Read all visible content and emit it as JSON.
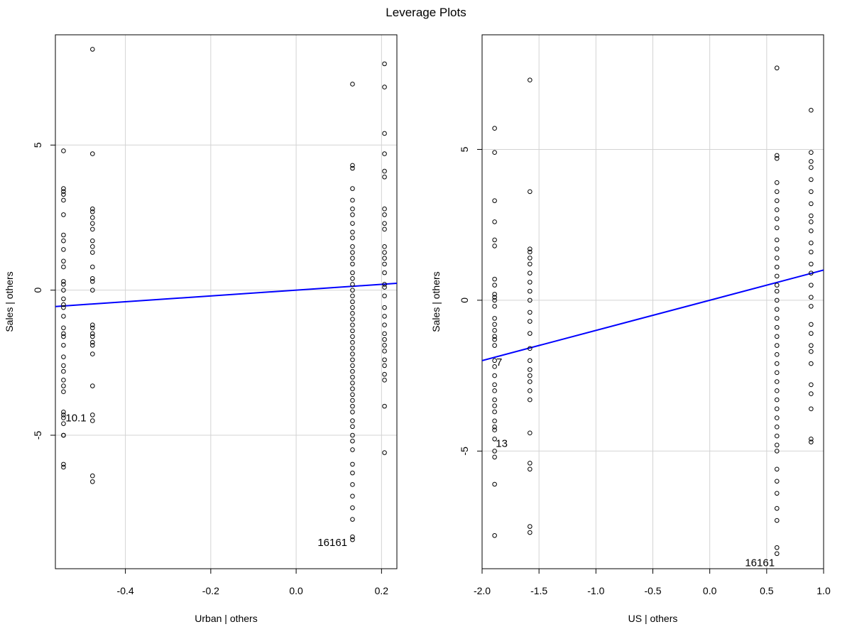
{
  "title": "Leverage Plots",
  "chart_data": [
    {
      "type": "scatter",
      "xlabel": "Urban | others",
      "ylabel": "Sales | others",
      "xlim": [
        -0.564,
        0.236
      ],
      "ylim": [
        -9.6,
        8.8
      ],
      "xticks": [
        "-0.4",
        "-0.2",
        "0.0",
        "0.2"
      ],
      "yticks": [
        "-5",
        "0",
        "5"
      ],
      "grid": true,
      "fit_line": {
        "slope": 1.0,
        "intercept": 0.0,
        "color": "#0000ff"
      },
      "points": [
        [
          -0.545,
          4.8
        ],
        [
          -0.545,
          3.5
        ],
        [
          -0.545,
          3.4
        ],
        [
          -0.545,
          3.3
        ],
        [
          -0.545,
          3.1
        ],
        [
          -0.545,
          2.6
        ],
        [
          -0.545,
          1.9
        ],
        [
          -0.545,
          1.7
        ],
        [
          -0.545,
          1.4
        ],
        [
          -0.545,
          1.0
        ],
        [
          -0.545,
          0.8
        ],
        [
          -0.545,
          0.3
        ],
        [
          -0.545,
          0.2
        ],
        [
          -0.545,
          0.0
        ],
        [
          -0.545,
          -0.3
        ],
        [
          -0.545,
          -0.5
        ],
        [
          -0.545,
          -0.6
        ],
        [
          -0.545,
          -0.9
        ],
        [
          -0.545,
          -1.3
        ],
        [
          -0.545,
          -1.5
        ],
        [
          -0.545,
          -1.6
        ],
        [
          -0.545,
          -1.9
        ],
        [
          -0.545,
          -2.3
        ],
        [
          -0.545,
          -2.6
        ],
        [
          -0.545,
          -2.8
        ],
        [
          -0.545,
          -3.1
        ],
        [
          -0.545,
          -3.3
        ],
        [
          -0.545,
          -3.5
        ],
        [
          -0.545,
          -4.2
        ],
        [
          -0.545,
          -4.3
        ],
        [
          -0.545,
          -4.4
        ],
        [
          -0.545,
          -4.6
        ],
        [
          -0.545,
          -5.0
        ],
        [
          -0.545,
          -5.0
        ],
        [
          -0.545,
          -6.0
        ],
        [
          -0.545,
          -6.1
        ],
        [
          -0.477,
          8.3
        ],
        [
          -0.477,
          4.7
        ],
        [
          -0.477,
          2.8
        ],
        [
          -0.477,
          2.7
        ],
        [
          -0.477,
          2.5
        ],
        [
          -0.477,
          2.3
        ],
        [
          -0.477,
          2.1
        ],
        [
          -0.477,
          1.7
        ],
        [
          -0.477,
          1.5
        ],
        [
          -0.477,
          1.3
        ],
        [
          -0.477,
          0.8
        ],
        [
          -0.477,
          0.4
        ],
        [
          -0.477,
          0.3
        ],
        [
          -0.477,
          0.0
        ],
        [
          -0.477,
          -1.2
        ],
        [
          -0.477,
          -1.3
        ],
        [
          -0.477,
          -1.5
        ],
        [
          -0.477,
          -1.6
        ],
        [
          -0.477,
          -1.8
        ],
        [
          -0.477,
          -1.9
        ],
        [
          -0.477,
          -2.2
        ],
        [
          -0.477,
          -3.3
        ],
        [
          -0.477,
          -4.3
        ],
        [
          -0.477,
          -4.5
        ],
        [
          -0.477,
          -6.4
        ],
        [
          -0.477,
          -6.6
        ],
        [
          0.132,
          7.1
        ],
        [
          0.132,
          4.3
        ],
        [
          0.132,
          4.2
        ],
        [
          0.132,
          3.5
        ],
        [
          0.132,
          3.1
        ],
        [
          0.132,
          2.8
        ],
        [
          0.132,
          2.6
        ],
        [
          0.132,
          2.3
        ],
        [
          0.132,
          2.0
        ],
        [
          0.132,
          1.8
        ],
        [
          0.132,
          1.5
        ],
        [
          0.132,
          1.3
        ],
        [
          0.132,
          1.1
        ],
        [
          0.132,
          0.9
        ],
        [
          0.132,
          0.6
        ],
        [
          0.132,
          0.4
        ],
        [
          0.132,
          0.2
        ],
        [
          0.132,
          0.0
        ],
        [
          0.132,
          -0.2
        ],
        [
          0.132,
          -0.4
        ],
        [
          0.132,
          -0.6
        ],
        [
          0.132,
          -0.8
        ],
        [
          0.132,
          -1.0
        ],
        [
          0.132,
          -1.2
        ],
        [
          0.132,
          -1.4
        ],
        [
          0.132,
          -1.6
        ],
        [
          0.132,
          -1.8
        ],
        [
          0.132,
          -2.0
        ],
        [
          0.132,
          -2.2
        ],
        [
          0.132,
          -2.4
        ],
        [
          0.132,
          -2.6
        ],
        [
          0.132,
          -2.8
        ],
        [
          0.132,
          -3.0
        ],
        [
          0.132,
          -3.2
        ],
        [
          0.132,
          -3.4
        ],
        [
          0.132,
          -3.6
        ],
        [
          0.132,
          -3.8
        ],
        [
          0.132,
          -4.0
        ],
        [
          0.132,
          -4.2
        ],
        [
          0.132,
          -4.5
        ],
        [
          0.132,
          -4.7
        ],
        [
          0.132,
          -5.0
        ],
        [
          0.132,
          -5.2
        ],
        [
          0.132,
          -5.5
        ],
        [
          0.132,
          -6.0
        ],
        [
          0.132,
          -6.3
        ],
        [
          0.132,
          -6.7
        ],
        [
          0.132,
          -7.1
        ],
        [
          0.132,
          -7.5
        ],
        [
          0.132,
          -7.9
        ],
        [
          0.132,
          -8.5
        ],
        [
          0.132,
          -8.6
        ],
        [
          0.207,
          7.8
        ],
        [
          0.207,
          7.0
        ],
        [
          0.207,
          5.4
        ],
        [
          0.207,
          4.7
        ],
        [
          0.207,
          4.1
        ],
        [
          0.207,
          3.9
        ],
        [
          0.207,
          2.8
        ],
        [
          0.207,
          2.6
        ],
        [
          0.207,
          2.3
        ],
        [
          0.207,
          2.1
        ],
        [
          0.207,
          1.5
        ],
        [
          0.207,
          1.3
        ],
        [
          0.207,
          1.1
        ],
        [
          0.207,
          0.9
        ],
        [
          0.207,
          0.6
        ],
        [
          0.207,
          0.2
        ],
        [
          0.207,
          0.1
        ],
        [
          0.207,
          -0.2
        ],
        [
          0.207,
          -0.6
        ],
        [
          0.207,
          -0.9
        ],
        [
          0.207,
          -1.2
        ],
        [
          0.207,
          -1.5
        ],
        [
          0.207,
          -1.7
        ],
        [
          0.207,
          -1.9
        ],
        [
          0.207,
          -2.1
        ],
        [
          0.207,
          -2.4
        ],
        [
          0.207,
          -2.6
        ],
        [
          0.207,
          -2.9
        ],
        [
          0.207,
          -3.1
        ],
        [
          0.207,
          -4.0
        ],
        [
          0.207,
          -5.6
        ]
      ],
      "annotations": [
        {
          "text": "10.1",
          "x": -0.54,
          "y": -4.4,
          "anchor": "start"
        },
        {
          "text": "16161",
          "x": 0.085,
          "y": -8.7,
          "anchor": "middle"
        }
      ]
    },
    {
      "type": "scatter",
      "xlabel": "US | others",
      "ylabel": "Sales | others",
      "xlim": [
        -2.0,
        1.0
      ],
      "ylim": [
        -8.9,
        8.8
      ],
      "xticks": [
        "-2.0",
        "-1.5",
        "-1.0",
        "-0.5",
        "0.0",
        "0.5",
        "1.0"
      ],
      "yticks": [
        "-5",
        "0",
        "5"
      ],
      "grid": true,
      "fit_line": {
        "slope": 1.0,
        "intercept": 0.0,
        "color": "#0000ff"
      },
      "points": [
        [
          -1.89,
          5.7
        ],
        [
          -1.89,
          4.9
        ],
        [
          -1.89,
          3.3
        ],
        [
          -1.89,
          2.6
        ],
        [
          -1.89,
          2.0
        ],
        [
          -1.89,
          1.8
        ],
        [
          -1.89,
          0.7
        ],
        [
          -1.89,
          0.5
        ],
        [
          -1.89,
          0.2
        ],
        [
          -1.89,
          0.1
        ],
        [
          -1.89,
          0.0
        ],
        [
          -1.89,
          -0.2
        ],
        [
          -1.89,
          -0.6
        ],
        [
          -1.89,
          -0.8
        ],
        [
          -1.89,
          -1.0
        ],
        [
          -1.89,
          -1.2
        ],
        [
          -1.89,
          -1.3
        ],
        [
          -1.89,
          -1.5
        ],
        [
          -1.89,
          -2.0
        ],
        [
          -1.89,
          -2.2
        ],
        [
          -1.89,
          -2.5
        ],
        [
          -1.89,
          -2.8
        ],
        [
          -1.89,
          -3.0
        ],
        [
          -1.89,
          -3.3
        ],
        [
          -1.89,
          -3.5
        ],
        [
          -1.89,
          -3.7
        ],
        [
          -1.89,
          -4.0
        ],
        [
          -1.89,
          -4.2
        ],
        [
          -1.89,
          -4.3
        ],
        [
          -1.89,
          -4.6
        ],
        [
          -1.89,
          -5.0
        ],
        [
          -1.89,
          -5.2
        ],
        [
          -1.89,
          -6.1
        ],
        [
          -1.89,
          -7.8
        ],
        [
          -1.58,
          7.3
        ],
        [
          -1.58,
          3.6
        ],
        [
          -1.58,
          1.7
        ],
        [
          -1.58,
          1.6
        ],
        [
          -1.58,
          1.4
        ],
        [
          -1.58,
          1.2
        ],
        [
          -1.58,
          0.9
        ],
        [
          -1.58,
          0.6
        ],
        [
          -1.58,
          0.3
        ],
        [
          -1.58,
          0.0
        ],
        [
          -1.58,
          -0.4
        ],
        [
          -1.58,
          -0.7
        ],
        [
          -1.58,
          -1.1
        ],
        [
          -1.58,
          -1.6
        ],
        [
          -1.58,
          -2.0
        ],
        [
          -1.58,
          -2.3
        ],
        [
          -1.58,
          -2.5
        ],
        [
          -1.58,
          -2.7
        ],
        [
          -1.58,
          -3.0
        ],
        [
          -1.58,
          -3.3
        ],
        [
          -1.58,
          -4.4
        ],
        [
          -1.58,
          -5.4
        ],
        [
          -1.58,
          -5.6
        ],
        [
          -1.58,
          -7.5
        ],
        [
          -1.58,
          -7.7
        ],
        [
          0.59,
          7.7
        ],
        [
          0.59,
          4.8
        ],
        [
          0.59,
          4.7
        ],
        [
          0.59,
          3.9
        ],
        [
          0.59,
          3.6
        ],
        [
          0.59,
          3.3
        ],
        [
          0.59,
          3.0
        ],
        [
          0.59,
          2.7
        ],
        [
          0.59,
          2.4
        ],
        [
          0.59,
          2.0
        ],
        [
          0.59,
          1.7
        ],
        [
          0.59,
          1.4
        ],
        [
          0.59,
          1.1
        ],
        [
          0.59,
          0.8
        ],
        [
          0.59,
          0.5
        ],
        [
          0.59,
          0.3
        ],
        [
          0.59,
          0.0
        ],
        [
          0.59,
          -0.3
        ],
        [
          0.59,
          -0.6
        ],
        [
          0.59,
          -0.9
        ],
        [
          0.59,
          -1.2
        ],
        [
          0.59,
          -1.5
        ],
        [
          0.59,
          -1.8
        ],
        [
          0.59,
          -2.1
        ],
        [
          0.59,
          -2.4
        ],
        [
          0.59,
          -2.7
        ],
        [
          0.59,
          -3.0
        ],
        [
          0.59,
          -3.3
        ],
        [
          0.59,
          -3.6
        ],
        [
          0.59,
          -3.9
        ],
        [
          0.59,
          -4.2
        ],
        [
          0.59,
          -4.5
        ],
        [
          0.59,
          -4.8
        ],
        [
          0.59,
          -5.0
        ],
        [
          0.59,
          -5.6
        ],
        [
          0.59,
          -6.0
        ],
        [
          0.59,
          -6.4
        ],
        [
          0.59,
          -6.9
        ],
        [
          0.59,
          -7.3
        ],
        [
          0.59,
          -8.2
        ],
        [
          0.59,
          -8.4
        ],
        [
          0.89,
          6.3
        ],
        [
          0.89,
          4.9
        ],
        [
          0.89,
          4.6
        ],
        [
          0.89,
          4.4
        ],
        [
          0.89,
          4.0
        ],
        [
          0.89,
          3.6
        ],
        [
          0.89,
          3.2
        ],
        [
          0.89,
          2.8
        ],
        [
          0.89,
          2.6
        ],
        [
          0.89,
          2.3
        ],
        [
          0.89,
          1.9
        ],
        [
          0.89,
          1.6
        ],
        [
          0.89,
          1.2
        ],
        [
          0.89,
          0.9
        ],
        [
          0.89,
          0.5
        ],
        [
          0.89,
          0.1
        ],
        [
          0.89,
          -0.2
        ],
        [
          0.89,
          -0.8
        ],
        [
          0.89,
          -1.1
        ],
        [
          0.89,
          -1.5
        ],
        [
          0.89,
          -1.7
        ],
        [
          0.89,
          -2.1
        ],
        [
          0.89,
          -2.8
        ],
        [
          0.89,
          -3.1
        ],
        [
          0.89,
          -3.6
        ],
        [
          0.89,
          -4.6
        ],
        [
          0.89,
          -4.7
        ]
      ],
      "annotations": [
        {
          "text": "7",
          "x": -1.875,
          "y": -2.05,
          "anchor": "start"
        },
        {
          "text": "13",
          "x": -1.88,
          "y": -4.75,
          "anchor": "start"
        },
        {
          "text": "16161",
          "x": 0.44,
          "y": -8.7,
          "anchor": "middle"
        }
      ]
    }
  ]
}
